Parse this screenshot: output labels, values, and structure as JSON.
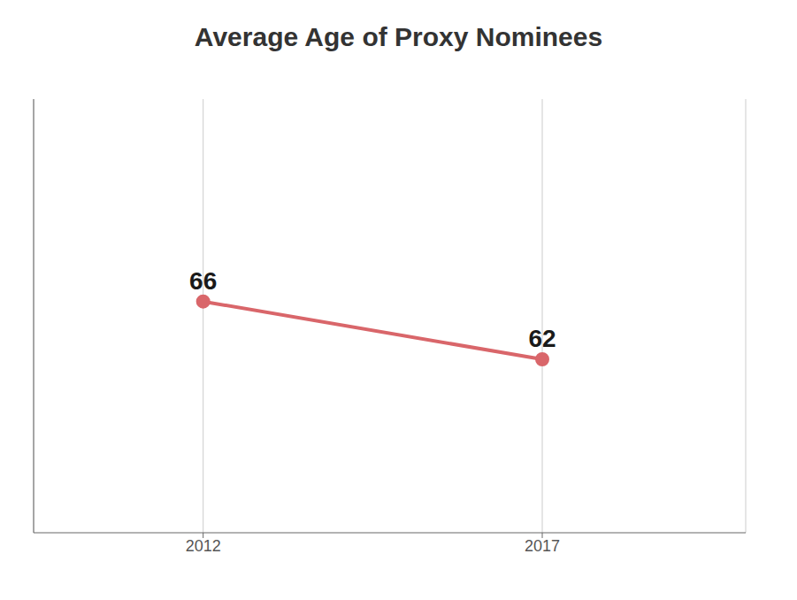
{
  "chart_data": {
    "type": "line",
    "title": "Average Age of Proxy Nominees",
    "x": [
      2012,
      2017
    ],
    "values": [
      66,
      62
    ],
    "color": "#d9666a",
    "xlim": [
      2009.5,
      2020
    ],
    "xticks": [
      2012,
      2017
    ],
    "ylim": [
      50,
      80
    ],
    "tick_labels": "x",
    "grid": true,
    "data_labels": true
  }
}
